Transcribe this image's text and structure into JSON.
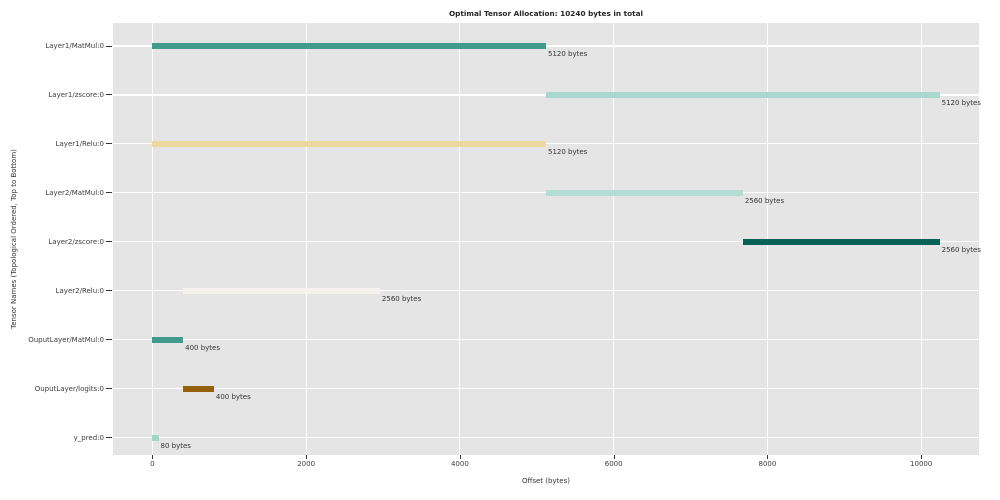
{
  "chart_data": {
    "type": "bar",
    "subtype": "horizontal-interval-allocation",
    "title": "Optimal Tensor Allocation: 10240 bytes in total",
    "xlabel": "Offset (bytes)",
    "ylabel": "Tensor Names (Topological Ordered, Top to Bottom)",
    "total_bytes": 10240,
    "xlim": [
      -512,
      10752
    ],
    "x_ticks": [
      0,
      2000,
      4000,
      6000,
      8000,
      10000
    ],
    "grid": true,
    "legend": "none",
    "rows": [
      {
        "name": "Layer1/MatMul:0",
        "offset": 0,
        "size": 5120,
        "annotation": "5120 bytes",
        "color": "#429a8d"
      },
      {
        "name": "Layer1/zscore:0",
        "offset": 5120,
        "size": 5120,
        "annotation": "5120 bytes",
        "color": "#a9d9ce"
      },
      {
        "name": "Layer1/Relu:0",
        "offset": 0,
        "size": 5120,
        "annotation": "5120 bytes",
        "color": "#ebd99e"
      },
      {
        "name": "Layer2/MatMul:0",
        "offset": 5120,
        "size": 2560,
        "annotation": "2560 bytes",
        "color": "#b4ddd3"
      },
      {
        "name": "Layer2/zscore:0",
        "offset": 7680,
        "size": 2560,
        "annotation": "2560 bytes",
        "color": "#076156"
      },
      {
        "name": "Layer2/Relu:0",
        "offset": 400,
        "size": 2560,
        "annotation": "2560 bytes",
        "color": "#f6f3ee"
      },
      {
        "name": "OuputLayer/MatMul:0",
        "offset": 0,
        "size": 400,
        "annotation": "400 bytes",
        "color": "#429a8d"
      },
      {
        "name": "OuputLayer/logits:0",
        "offset": 400,
        "size": 400,
        "annotation": "400 bytes",
        "color": "#96610f"
      },
      {
        "name": "y_pred:0",
        "offset": 0,
        "size": 80,
        "annotation": "80 bytes",
        "color": "#a0d6c6"
      }
    ]
  },
  "colors": {
    "figure_bg": "#ffffff",
    "plot_bg": "#e5e5e5",
    "grid": "#ffffff",
    "text": "#333333"
  }
}
